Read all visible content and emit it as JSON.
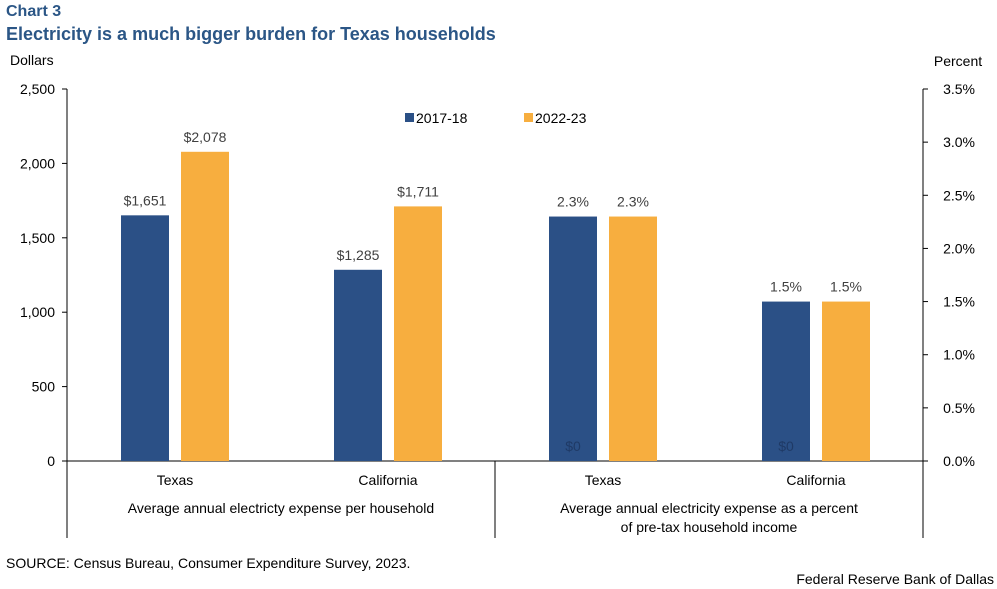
{
  "header": {
    "chart_label": "Chart 3",
    "title": "Electricity is a much bigger burden for Texas households"
  },
  "footer": {
    "source": "SOURCE: Census Bureau, Consumer Expenditure Survey, 2023.",
    "credit": "Federal Reserve Bank of Dallas"
  },
  "colors": {
    "series_2017": "#2b5086",
    "series_2022": "#f7ae3f",
    "axis": "#000000",
    "data_label": "#404040"
  },
  "chart_data": {
    "type": "bar",
    "title": "Electricity is a much bigger burden for Texas households",
    "legend_position": "top-center",
    "grid": false,
    "left_axis": {
      "label": "Dollars",
      "range": [
        0,
        2500
      ],
      "ticks": [
        0,
        500,
        1000,
        1500,
        2000,
        2500
      ],
      "tick_labels": [
        "0",
        "500",
        "1,000",
        "1,500",
        "2,000",
        "2,500"
      ]
    },
    "right_axis": {
      "label": "Percent",
      "range": [
        0,
        3.5
      ],
      "ticks": [
        0,
        0.5,
        1.0,
        1.5,
        2.0,
        2.5,
        3.0,
        3.5
      ],
      "tick_labels": [
        "0.0%",
        "0.5%",
        "1.0%",
        "1.5%",
        "2.0%",
        "2.5%",
        "3.0%",
        "3.5%"
      ]
    },
    "categories": [
      "Texas",
      "California",
      "Texas",
      "California"
    ],
    "groups": [
      {
        "label": "Average annual electricty expense per household",
        "axis": "left",
        "categories": [
          0,
          1
        ]
      },
      {
        "label": "Average annual electricity expense as a percent of pre-tax household income",
        "label_lines": [
          "Average annual electricity expense as a percent",
          "of pre-tax household income"
        ],
        "axis": "right",
        "categories": [
          2,
          3
        ]
      }
    ],
    "series": [
      {
        "name": "2017-18",
        "values": [
          1651,
          1285,
          2.3,
          1.5
        ],
        "labels": [
          "$1,651",
          "$1,285",
          "2.3%",
          "1.5%"
        ],
        "spurious_labels": [
          "",
          "",
          "$0",
          "$0"
        ]
      },
      {
        "name": "2022-23",
        "values": [
          2078,
          1711,
          2.3,
          1.5
        ],
        "labels": [
          "$2,078",
          "$1,711",
          "2.3%",
          "1.5%"
        ]
      }
    ]
  }
}
